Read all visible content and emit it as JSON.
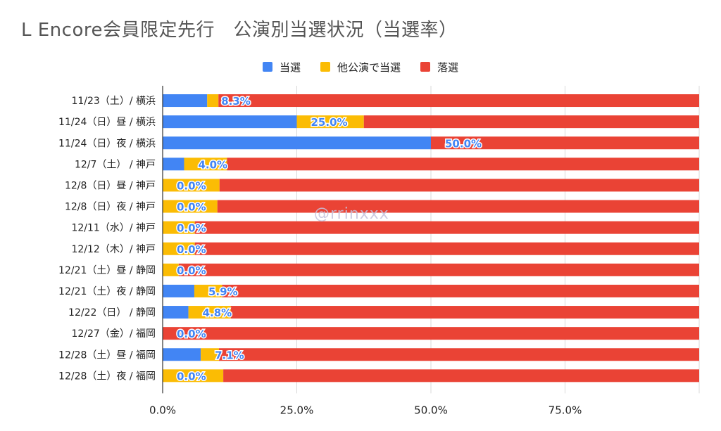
{
  "chart_data": {
    "type": "bar",
    "orientation": "horizontal",
    "stacked": "percent",
    "title": "L Encore会員限定先行　公演別当選状況（当選率）",
    "categories": [
      "11/23（土）/ 横浜",
      "11/24（日）昼 / 横浜",
      "11/24（日）夜 / 横浜",
      "12/7（土） / 神戸",
      "12/8（日）昼 / 神戸",
      "12/8（日）夜 / 神戸",
      "12/11（水）/ 神戸",
      "12/12（木）/ 神戸",
      "12/21（土）昼 / 静岡",
      "12/21（土）夜 / 静岡",
      "12/22（日） / 静岡",
      "12/27（金）/ 福岡",
      "12/28（土）昼 / 福岡",
      "12/28（土）夜 / 福岡"
    ],
    "series": [
      {
        "name": "当選",
        "color": "#4285f4",
        "values": [
          8.3,
          25.0,
          50.0,
          4.0,
          0.0,
          0.0,
          0.0,
          0.0,
          0.0,
          5.9,
          4.8,
          0.0,
          7.1,
          0.0
        ]
      },
      {
        "name": "他公演で当選",
        "color": "#fbbc04",
        "values": [
          2.1,
          12.5,
          0.0,
          8.0,
          10.6,
          10.2,
          6.0,
          6.0,
          3.0,
          5.2,
          7.9,
          0.0,
          3.4,
          11.3
        ]
      },
      {
        "name": "落選",
        "color": "#ea4335",
        "values": [
          89.6,
          62.5,
          50.0,
          88.0,
          89.4,
          89.8,
          94.0,
          94.0,
          97.0,
          88.9,
          87.3,
          100.0,
          89.5,
          88.7
        ]
      }
    ],
    "data_labels": [
      "8.3%",
      "25.0%",
      "50.0%",
      "4.0%",
      "0.0%",
      "0.0%",
      "0.0%",
      "0.0%",
      "0.0%",
      "5.9%",
      "4.8%",
      "0.0%",
      "7.1%",
      "0.0%"
    ],
    "x_ticks": [
      "0.0%",
      "25.0%",
      "50.0%",
      "75.0%"
    ],
    "xlim": [
      0,
      100
    ],
    "grid": true,
    "legend_position": "top"
  },
  "watermark": "@rrinxxx"
}
